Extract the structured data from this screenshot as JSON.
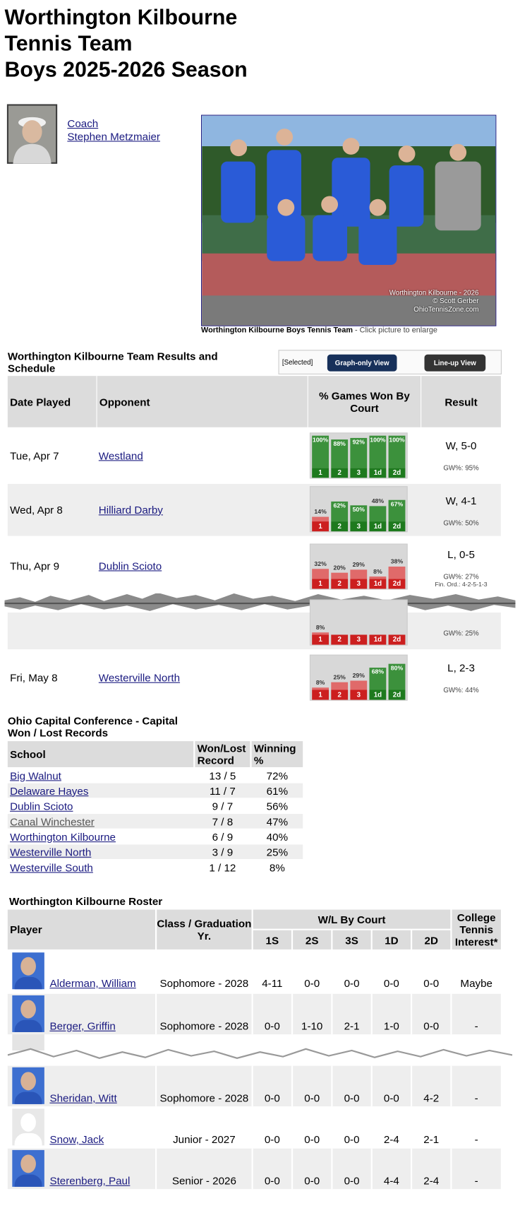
{
  "header": {
    "title_lines": [
      "Worthington Kilbourne",
      "Tennis Team",
      "Boys 2025-2026 Season"
    ]
  },
  "coach": {
    "role": "Coach",
    "name": "Stephen Metzmaier"
  },
  "team_photo": {
    "watermark": [
      "Worthington Kilbourne - 2026",
      "© Scott Gerber",
      "OhioTennisZone.com"
    ],
    "caption": "Worthington Kilbourne Boys Tennis Team",
    "caption_hint": " - Click picture to enlarge"
  },
  "results": {
    "title": "Worthington Kilbourne Team Results and Schedule",
    "view_selector": {
      "selected": "[Selected]",
      "buttons": [
        "Graph-only View",
        "Line-up View"
      ]
    },
    "columns": [
      "Date Played",
      "Opponent",
      "% Games Won By Court",
      "Result"
    ],
    "courts": [
      "1",
      "2",
      "3",
      "1d",
      "2d"
    ],
    "rows": [
      {
        "date": "Tue, Apr 7",
        "opponent": "Westland",
        "pct": [
          100,
          88,
          92,
          100,
          100
        ],
        "pct_labels": [
          "100%",
          "88%",
          "92%",
          "100%",
          "100%"
        ],
        "won": [
          true,
          true,
          true,
          true,
          true
        ],
        "result": "W, 5-0",
        "gw": "GW%: 95%"
      },
      {
        "date": "Wed, Apr 8",
        "opponent": "Hilliard Darby",
        "pct": [
          14,
          62,
          50,
          48,
          67
        ],
        "pct_labels": [
          "14%",
          "62%",
          "50%",
          "48%",
          "67%"
        ],
        "won": [
          false,
          true,
          true,
          true,
          true
        ],
        "result": "W, 4-1",
        "gw": "GW%: 50%"
      },
      {
        "date": "Thu, Apr 9",
        "opponent": "Dublin Scioto",
        "pct": [
          32,
          20,
          29,
          8,
          38
        ],
        "pct_labels": [
          "32%",
          "20%",
          "29%",
          "8%",
          "38%"
        ],
        "won": [
          false,
          false,
          false,
          false,
          false
        ],
        "result": "L, 0-5",
        "gw": "GW%: 27%",
        "note": "Fin. Ord.: 4-2-5-1-3"
      },
      {
        "pct": [
          8,
          null,
          null,
          null,
          null
        ],
        "pct_labels": [
          "8%",
          null,
          null,
          null,
          null
        ],
        "won": [
          false,
          false,
          false,
          false,
          false
        ],
        "gw": "GW%: 25%"
      },
      {
        "date": "Fri, May 8",
        "opponent": "Westerville North",
        "pct": [
          8,
          25,
          29,
          68,
          80
        ],
        "pct_labels": [
          "8%",
          "25%",
          "29%",
          "68%",
          "80%"
        ],
        "won": [
          false,
          false,
          false,
          true,
          true
        ],
        "result": "L, 2-3",
        "gw": "GW%: 44%"
      }
    ]
  },
  "conference": {
    "title_lines": [
      "Ohio Capital Conference - Capital",
      "Won / Lost Records"
    ],
    "columns": [
      "School",
      "Won/Lost Record",
      "Winning %"
    ],
    "rows": [
      [
        "Big Walnut",
        "13 / 5",
        "72%"
      ],
      [
        "Delaware Hayes",
        "11 / 7",
        "61%"
      ],
      [
        "Dublin Scioto",
        "9 / 7",
        "56%"
      ],
      [
        "Canal Winchester",
        "7 / 8",
        "47%"
      ],
      [
        "Worthington Kilbourne",
        "6 / 9",
        "40%"
      ],
      [
        "Westerville North",
        "3 / 9",
        "25%"
      ],
      [
        "Westerville South",
        "1 / 12",
        "8%"
      ]
    ]
  },
  "roster": {
    "title": "Worthington Kilbourne Roster",
    "columns": {
      "player": "Player",
      "class": "Class / Graduation Yr.",
      "wl": "W/L By Court",
      "courts": [
        "1S",
        "2S",
        "3S",
        "1D",
        "2D"
      ],
      "interest": "College Tennis Interest*"
    },
    "rows": [
      {
        "name": "Alderman, William",
        "class": "Sophomore - 2028",
        "wl": [
          "4-11",
          "0-0",
          "0-0",
          "0-0",
          "0-0"
        ],
        "interest": "Maybe",
        "has_photo": true
      },
      {
        "name": "Berger, Griffin",
        "class": "Sophomore - 2028",
        "wl": [
          "0-0",
          "1-10",
          "2-1",
          "1-0",
          "0-0"
        ],
        "interest": "-",
        "has_photo": true
      },
      {
        "name": "Sheridan, Witt",
        "class": "Sophomore - 2028",
        "wl": [
          "0-0",
          "0-0",
          "0-0",
          "0-0",
          "4-2"
        ],
        "interest": "-",
        "has_photo": true
      },
      {
        "name": "Snow, Jack",
        "class": "Junior - 2027",
        "wl": [
          "0-0",
          "0-0",
          "0-0",
          "2-4",
          "2-1"
        ],
        "interest": "-",
        "has_photo": false
      },
      {
        "name": "Sterenberg, Paul",
        "class": "Senior - 2026",
        "wl": [
          "0-0",
          "0-0",
          "0-0",
          "4-4",
          "2-4"
        ],
        "interest": "-",
        "has_photo": true
      }
    ]
  }
}
